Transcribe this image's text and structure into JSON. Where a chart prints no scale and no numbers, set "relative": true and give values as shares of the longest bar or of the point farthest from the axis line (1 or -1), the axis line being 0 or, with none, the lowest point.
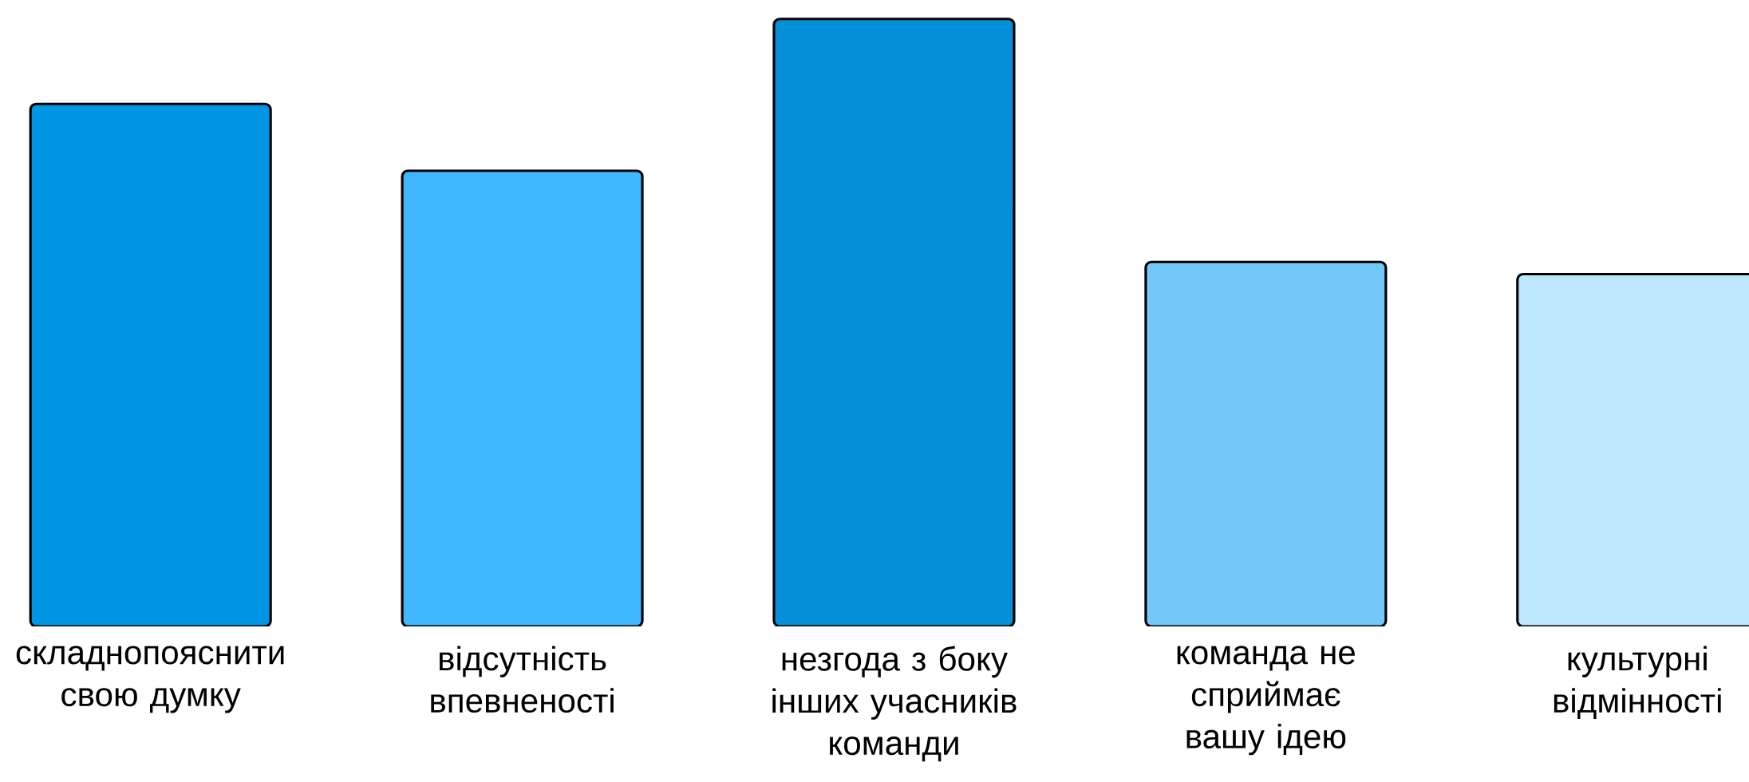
{
  "chart_data": {
    "type": "bar",
    "relative": true,
    "categories": [
      "складнопояснити свою думку",
      "відсутність впевненості",
      "незгода з боку інших учасників команди",
      "команда не сприймає вашу ідею",
      "культурні відмінності"
    ],
    "values": [
      0.86,
      0.75,
      1,
      0.6,
      0.58
    ],
    "colors": [
      "#0096e6",
      "#40b8ff",
      "#058fd8",
      "#73c8fa",
      "#bde5fc"
    ]
  }
}
